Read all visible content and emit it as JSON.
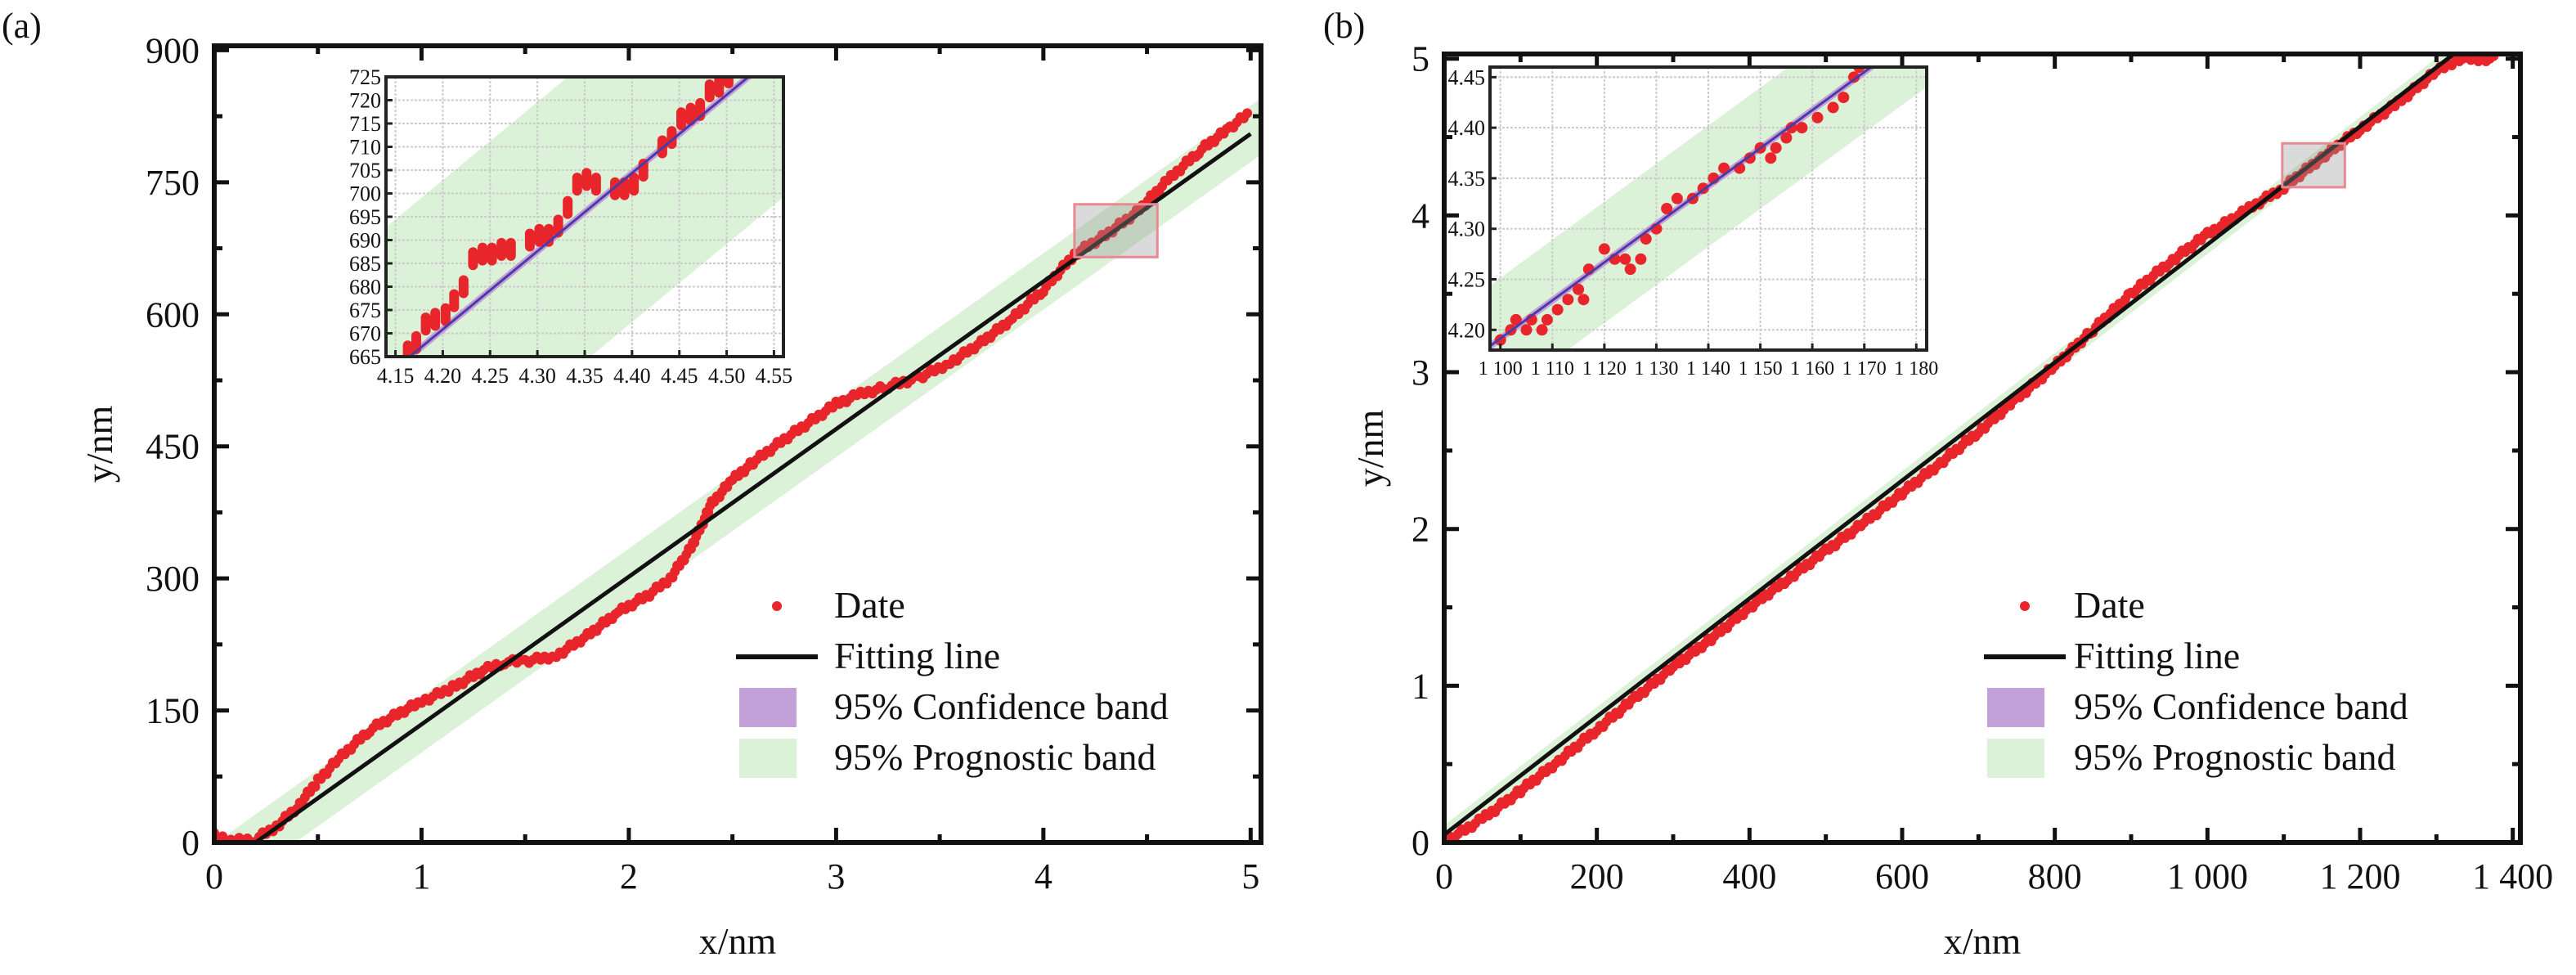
{
  "chart_data": [
    {
      "panel_label": "(a)",
      "type": "scatter",
      "xlabel": "x/nm",
      "ylabel": "y/nm",
      "xlim": [
        0,
        5.05
      ],
      "ylim": [
        0,
        905
      ],
      "xticks": [
        0,
        1,
        2,
        3,
        4,
        5
      ],
      "xtick_labels": [
        "0",
        "1",
        "2",
        "3",
        "4",
        "5"
      ],
      "yticks": [
        0,
        150,
        300,
        450,
        600,
        750,
        900
      ],
      "ytick_labels": [
        "0",
        "150",
        "300",
        "450",
        "600",
        "750",
        "900"
      ],
      "grid": false,
      "legend_position": "lower-right",
      "legend": [
        "Date",
        "Fitting line",
        "95% Confidence band",
        "95% Prognostic band"
      ],
      "colors": {
        "data": "#e8252b",
        "fit": "#111111",
        "confidence": "#c4a0d8",
        "prognostic": "#dcf2d8",
        "inset_fit": "#4b3aa8",
        "highlight": "#e88a94"
      },
      "data": [
        [
          0,
          8
        ],
        [
          0.1,
          2
        ],
        [
          0.2,
          4
        ],
        [
          0.3,
          18
        ],
        [
          0.4,
          40
        ],
        [
          0.5,
          70
        ],
        [
          0.6,
          95
        ],
        [
          0.75,
          128
        ],
        [
          0.9,
          148
        ],
        [
          1.0,
          160
        ],
        [
          1.15,
          176
        ],
        [
          1.3,
          196
        ],
        [
          1.4,
          205
        ],
        [
          1.5,
          206
        ],
        [
          1.65,
          212
        ],
        [
          1.8,
          235
        ],
        [
          1.95,
          262
        ],
        [
          2.1,
          282
        ],
        [
          2.2,
          300
        ],
        [
          2.3,
          335
        ],
        [
          2.4,
          385
        ],
        [
          2.5,
          412
        ],
        [
          2.6,
          432
        ],
        [
          2.75,
          458
        ],
        [
          2.9,
          482
        ],
        [
          3.0,
          498
        ],
        [
          3.1,
          508
        ],
        [
          3.25,
          518
        ],
        [
          3.4,
          528
        ],
        [
          3.55,
          545
        ],
        [
          3.7,
          568
        ],
        [
          3.85,
          595
        ],
        [
          4.0,
          628
        ],
        [
          4.15,
          668
        ],
        [
          4.3,
          690
        ],
        [
          4.45,
          716
        ],
        [
          4.6,
          752
        ],
        [
          4.75,
          785
        ],
        [
          4.9,
          812
        ],
        [
          5.0,
          830
        ]
      ],
      "fit": {
        "slope": 167.7,
        "intercept": -33.5,
        "x_range": [
          0.2,
          5.0
        ]
      },
      "prognostic_halfwidth": 32,
      "highlight": {
        "x": [
          4.15,
          4.55
        ],
        "y": [
          665,
          725
        ]
      },
      "inset": {
        "xlim": [
          4.14,
          4.56
        ],
        "ylim": [
          665,
          725
        ],
        "xticks": [
          4.15,
          4.2,
          4.25,
          4.3,
          4.35,
          4.4,
          4.45,
          4.5,
          4.55
        ],
        "xtick_labels": [
          "4.15",
          "4.20",
          "4.25",
          "4.30",
          "4.35",
          "4.40",
          "4.45",
          "4.50",
          "4.55"
        ],
        "yticks": [
          665,
          670,
          675,
          680,
          685,
          690,
          695,
          700,
          705,
          710,
          715,
          720,
          725
        ],
        "ytick_labels": [
          "665",
          "670",
          "675",
          "680",
          "685",
          "690",
          "695",
          "700",
          "705",
          "710",
          "715",
          "720",
          "725"
        ],
        "grid": true,
        "data": [
          [
            4.163,
            666
          ],
          [
            4.172,
            668
          ],
          [
            4.182,
            672
          ],
          [
            4.192,
            673
          ],
          [
            4.203,
            674
          ],
          [
            4.212,
            677
          ],
          [
            4.222,
            680
          ],
          [
            4.232,
            686
          ],
          [
            4.242,
            687
          ],
          [
            4.252,
            687
          ],
          [
            4.262,
            688
          ],
          [
            4.272,
            688
          ],
          [
            4.292,
            690
          ],
          [
            4.302,
            691
          ],
          [
            4.312,
            691
          ],
          [
            4.322,
            693
          ],
          [
            4.332,
            697
          ],
          [
            4.342,
            702
          ],
          [
            4.352,
            703
          ],
          [
            4.362,
            702
          ],
          [
            4.382,
            701
          ],
          [
            4.392,
            701
          ],
          [
            4.402,
            702
          ],
          [
            4.412,
            705
          ],
          [
            4.432,
            710
          ],
          [
            4.442,
            712
          ],
          [
            4.452,
            716
          ],
          [
            4.462,
            717
          ],
          [
            4.472,
            718
          ],
          [
            4.482,
            722
          ],
          [
            4.492,
            723
          ],
          [
            4.502,
            725
          ]
        ],
        "fit": {
          "slope": 167.7,
          "intercept": -33.5
        },
        "prognostic_halfwidth": 32
      }
    },
    {
      "panel_label": "(b)",
      "type": "scatter",
      "xlabel": "x/nm",
      "ylabel": "y/nm",
      "xlim": [
        0,
        1410
      ],
      "ylim": [
        0,
        5.03
      ],
      "xticks": [
        0,
        200,
        400,
        600,
        800,
        1000,
        1200,
        1400
      ],
      "xtick_labels": [
        "0",
        "200",
        "400",
        "600",
        "800",
        "1 000",
        "1 200",
        "1 400"
      ],
      "yticks": [
        0,
        1,
        2,
        3,
        4,
        5
      ],
      "ytick_labels": [
        "0",
        "1",
        "2",
        "3",
        "4",
        "5"
      ],
      "grid": false,
      "legend_position": "lower-right",
      "legend": [
        "Date",
        "Fitting line",
        "95% Confidence band",
        "95% Prognostic band"
      ],
      "colors": {
        "data": "#e8252b",
        "fit": "#111111",
        "confidence": "#c4a0d8",
        "prognostic": "#dcf2d8",
        "inset_fit": "#4b3aa8",
        "highlight": "#e88a94"
      },
      "data": [
        [
          0,
          0.0
        ],
        [
          50,
          0.15
        ],
        [
          100,
          0.33
        ],
        [
          150,
          0.52
        ],
        [
          200,
          0.72
        ],
        [
          250,
          0.92
        ],
        [
          300,
          1.12
        ],
        [
          350,
          1.3
        ],
        [
          400,
          1.5
        ],
        [
          450,
          1.68
        ],
        [
          500,
          1.86
        ],
        [
          550,
          2.04
        ],
        [
          600,
          2.23
        ],
        [
          650,
          2.42
        ],
        [
          700,
          2.62
        ],
        [
          750,
          2.83
        ],
        [
          800,
          3.04
        ],
        [
          850,
          3.27
        ],
        [
          900,
          3.5
        ],
        [
          950,
          3.7
        ],
        [
          1000,
          3.88
        ],
        [
          1050,
          4.03
        ],
        [
          1100,
          4.18
        ],
        [
          1150,
          4.37
        ],
        [
          1200,
          4.55
        ],
        [
          1250,
          4.72
        ],
        [
          1300,
          4.92
        ],
        [
          1330,
          5.0
        ],
        [
          1360,
          5.0
        ],
        [
          1380,
          5.0
        ]
      ],
      "fit": {
        "slope": 0.003765,
        "intercept": 0.05,
        "x_range": [
          0,
          1340
        ]
      },
      "prognostic_halfwidth": 0.06,
      "highlight": {
        "x": [
          1098,
          1180
        ],
        "y": [
          4.18,
          4.46
        ]
      },
      "inset": {
        "xlim": [
          1098,
          1182
        ],
        "ylim": [
          4.18,
          4.46
        ],
        "xticks": [
          1100,
          1110,
          1120,
          1130,
          1140,
          1150,
          1160,
          1170,
          1180
        ],
        "xtick_labels": [
          "1 100",
          "1 110",
          "1 120",
          "1 130",
          "1 140",
          "1 150",
          "1 160",
          "1 170",
          "1 180"
        ],
        "yticks": [
          4.2,
          4.25,
          4.3,
          4.35,
          4.4,
          4.45
        ],
        "ytick_labels": [
          "4.20",
          "4.25",
          "4.30",
          "4.35",
          "4.40",
          "4.45"
        ],
        "grid": true,
        "data": [
          [
            1100,
            4.19
          ],
          [
            1102,
            4.2
          ],
          [
            1103,
            4.21
          ],
          [
            1105,
            4.2
          ],
          [
            1106,
            4.21
          ],
          [
            1108,
            4.2
          ],
          [
            1109,
            4.21
          ],
          [
            1111,
            4.22
          ],
          [
            1113,
            4.23
          ],
          [
            1115,
            4.24
          ],
          [
            1116,
            4.23
          ],
          [
            1117,
            4.26
          ],
          [
            1120,
            4.28
          ],
          [
            1122,
            4.27
          ],
          [
            1124,
            4.27
          ],
          [
            1125,
            4.26
          ],
          [
            1127,
            4.27
          ],
          [
            1128,
            4.29
          ],
          [
            1130,
            4.3
          ],
          [
            1132,
            4.32
          ],
          [
            1134,
            4.33
          ],
          [
            1137,
            4.33
          ],
          [
            1139,
            4.34
          ],
          [
            1141,
            4.35
          ],
          [
            1143,
            4.36
          ],
          [
            1146,
            4.36
          ],
          [
            1148,
            4.37
          ],
          [
            1150,
            4.38
          ],
          [
            1152,
            4.37
          ],
          [
            1153,
            4.38
          ],
          [
            1155,
            4.39
          ],
          [
            1156,
            4.4
          ],
          [
            1158,
            4.4
          ],
          [
            1161,
            4.41
          ],
          [
            1164,
            4.42
          ],
          [
            1166,
            4.43
          ],
          [
            1168,
            4.45
          ],
          [
            1169,
            4.46
          ]
        ],
        "fit": {
          "slope": 0.003765,
          "intercept": 0.05
        },
        "prognostic_halfwidth": 0.06
      }
    }
  ]
}
